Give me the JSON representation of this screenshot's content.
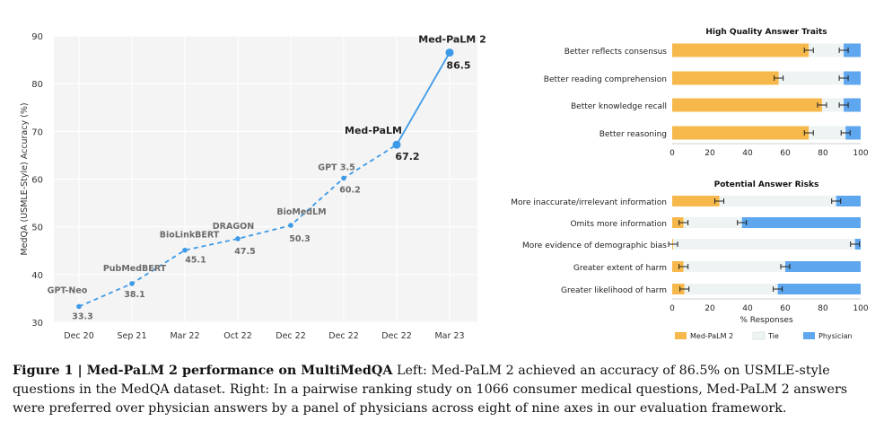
{
  "chart_data": [
    {
      "type": "line",
      "title": "",
      "xlabel": "",
      "ylabel": "MedQA (USMLE-Style) Accuracy (%)",
      "ylim": [
        30,
        90
      ],
      "yticks": [
        30,
        40,
        50,
        60,
        70,
        80,
        90
      ],
      "categories": [
        "Dec 20",
        "Sep 21",
        "Mar 22",
        "Oct 22",
        "Dec 22",
        "Dec 22",
        "Dec 22",
        "Mar 23"
      ],
      "points": [
        {
          "model": "GPT-Neo",
          "value": 33.3,
          "value_label": "33.3"
        },
        {
          "model": "PubMedBERT",
          "value": 38.1,
          "value_label": "38.1"
        },
        {
          "model": "BioLinkBERT",
          "value": 45.1,
          "value_label": "45.1"
        },
        {
          "model": "DRAGON",
          "value": 47.5,
          "value_label": "47.5"
        },
        {
          "model": "BioMedLM",
          "value": 50.3,
          "value_label": "50.3"
        },
        {
          "model": "GPT 3.5",
          "value": 60.2,
          "value_label": "60.2"
        },
        {
          "model": "Med-PaLM",
          "value": 67.2,
          "value_label": "67.2"
        },
        {
          "model": "Med-PaLM 2",
          "value": 86.5,
          "value_label": "86.5"
        }
      ],
      "colors": {
        "line": "#3d9ae8",
        "point": "#3d9ae8",
        "background": "#f4f4f4",
        "muted_label": "#6b6b6b"
      }
    },
    {
      "type": "bar",
      "orientation": "horizontal-stacked",
      "title": "High Quality Answer Traits",
      "xlim": [
        0,
        100
      ],
      "xticks": [
        0,
        20,
        40,
        60,
        80,
        100
      ],
      "categories": [
        "Better reflects consensus",
        "Better reading comprehension",
        "Better knowledge recall",
        "Better reasoning"
      ],
      "series": [
        {
          "name": "Med-PaLM 2",
          "values": [
            72.5,
            56.5,
            79.5,
            72.5
          ]
        },
        {
          "name": "Tie",
          "values": [
            18.5,
            34.5,
            11.5,
            19.5
          ]
        },
        {
          "name": "Physician",
          "values": [
            9,
            9,
            9,
            8
          ]
        }
      ]
    },
    {
      "type": "bar",
      "orientation": "horizontal-stacked",
      "title": "Potential Answer Risks",
      "xlabel": "% Responses",
      "xlim": [
        0,
        100
      ],
      "xticks": [
        0,
        20,
        40,
        60,
        80,
        100
      ],
      "categories": [
        "More inaccurate/irrelevant information",
        "Omits more information",
        "More evidence of demographic bias",
        "Greater extent of harm",
        "Greater likelihood of harm"
      ],
      "series": [
        {
          "name": "Med-PaLM 2",
          "values": [
            25,
            6,
            0.5,
            6,
            6.5
          ]
        },
        {
          "name": "Tie",
          "values": [
            62,
            31,
            96.5,
            54,
            49.5
          ]
        },
        {
          "name": "Physician",
          "values": [
            13,
            63,
            3,
            40,
            44
          ]
        }
      ]
    }
  ],
  "legend": {
    "items": [
      {
        "label": "Med-PaLM 2",
        "color": "#f6b84b"
      },
      {
        "label": "Tie",
        "color": "#eef4f3"
      },
      {
        "label": "Physician",
        "color": "#5ea6ee"
      }
    ]
  },
  "caption": {
    "figure_label": "Figure 1 | Med-PaLM 2 performance on MultiMedQA",
    "text": "Left: Med-PaLM 2 achieved an accuracy of 86.5% on USMLE-style questions in the MedQA dataset. Right: In a pairwise ranking study on 1066 consumer medical questions, Med-PaLM 2 answers were preferred over physician answers by a panel of physicians across eight of nine axes in our evaluation framework."
  }
}
